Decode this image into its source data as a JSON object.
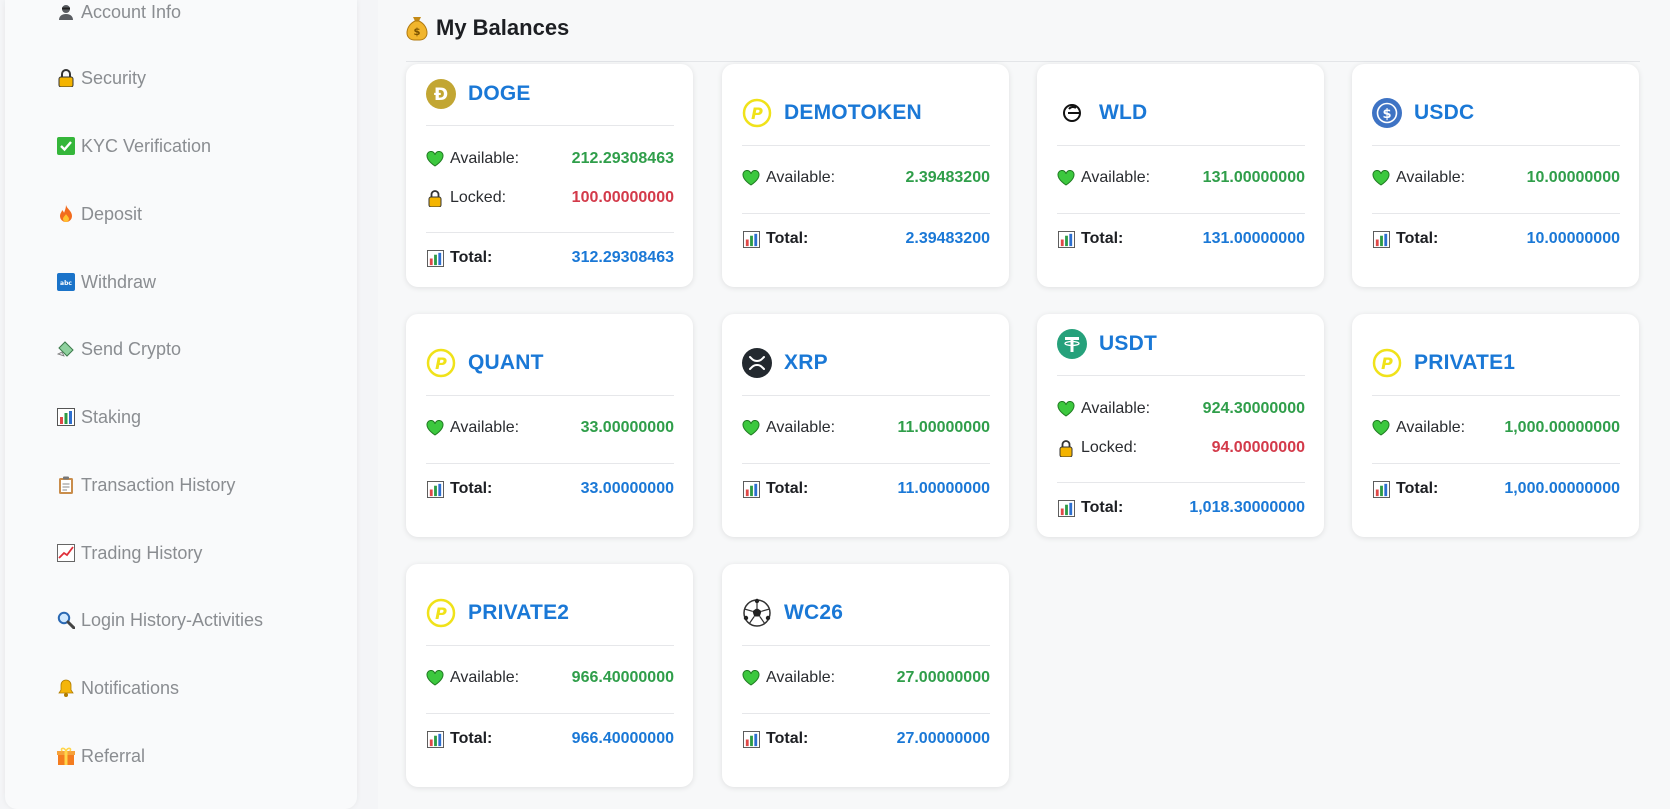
{
  "sidebar": {
    "items": [
      {
        "label": "Account Info",
        "icon": "user-icon"
      },
      {
        "label": "Security",
        "icon": "lock-icon"
      },
      {
        "label": "KYC Verification",
        "icon": "check-icon"
      },
      {
        "label": "Deposit",
        "icon": "fire-icon"
      },
      {
        "label": "Withdraw",
        "icon": "abc-icon"
      },
      {
        "label": "Send Crypto",
        "icon": "money-wings-icon"
      },
      {
        "label": "Staking",
        "icon": "bar-chart-icon"
      },
      {
        "label": "Transaction History",
        "icon": "clipboard-icon"
      },
      {
        "label": "Trading History",
        "icon": "chart-up-icon"
      },
      {
        "label": "Login History-Activities",
        "icon": "magnifier-icon"
      },
      {
        "label": "Notifications",
        "icon": "bell-icon"
      },
      {
        "label": "Referral",
        "icon": "gift-icon"
      }
    ]
  },
  "header": {
    "title": "My Balances",
    "icon": "money-bag-icon"
  },
  "labels": {
    "available": "Available:",
    "locked": "Locked:",
    "total": "Total:"
  },
  "colors": {
    "available": "#2f9e4a",
    "locked": "#d33a4a",
    "total": "#1a78d6",
    "symbol": "#1a78d6"
  },
  "balances": [
    {
      "symbol": "DOGE",
      "icon": "doge-coin-icon",
      "available": "212.29308463",
      "locked": "100.00000000",
      "total": "312.29308463"
    },
    {
      "symbol": "DEMOTOKEN",
      "icon": "p-token-icon",
      "available": "2.39483200",
      "total": "2.39483200"
    },
    {
      "symbol": "WLD",
      "icon": "worldcoin-icon",
      "available": "131.00000000",
      "total": "131.00000000"
    },
    {
      "symbol": "USDC",
      "icon": "usdc-coin-icon",
      "available": "10.00000000",
      "total": "10.00000000"
    },
    {
      "symbol": "QUANT",
      "icon": "p-token-icon",
      "available": "33.00000000",
      "total": "33.00000000"
    },
    {
      "symbol": "XRP",
      "icon": "xrp-coin-icon",
      "available": "11.00000000",
      "total": "11.00000000"
    },
    {
      "symbol": "USDT",
      "icon": "tether-coin-icon",
      "available": "924.30000000",
      "locked": "94.00000000",
      "total": "1,018.30000000"
    },
    {
      "symbol": "PRIVATE1",
      "icon": "p-token-icon",
      "available": "1,000.00000000",
      "total": "1,000.00000000"
    },
    {
      "symbol": "PRIVATE2",
      "icon": "p-token-icon",
      "available": "966.40000000",
      "total": "966.40000000"
    },
    {
      "symbol": "WC26",
      "icon": "soccer-ball-icon",
      "available": "27.00000000",
      "total": "27.00000000"
    }
  ]
}
